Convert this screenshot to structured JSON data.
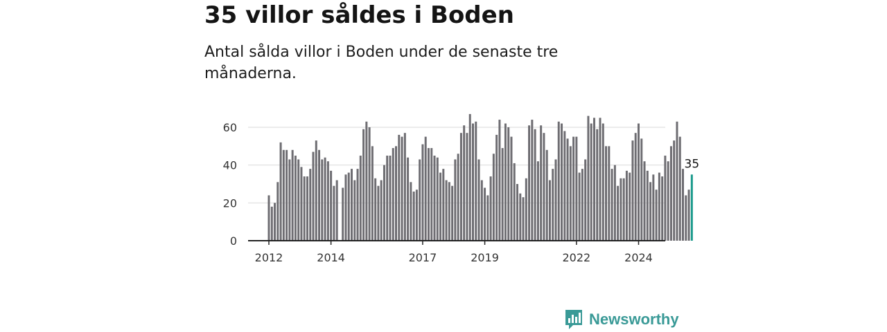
{
  "title": "35 villor såldes i Boden",
  "subtitle": "Antal sålda villor i Boden under de senaste tre månaderna.",
  "brand": {
    "name": "Newsworthy",
    "icon": "bar-chart-speech-bubble-icon",
    "color": "#3a9a97"
  },
  "colors": {
    "bars": "#6e6d72",
    "highlight": "#1a9a8c",
    "grid": "#d9d9d9",
    "axis": "#222222"
  },
  "chart_data": {
    "type": "bar",
    "title": "35 villor såldes i Boden",
    "xlabel": "",
    "ylabel": "",
    "ylim": [
      0,
      70
    ],
    "yticks": [
      0,
      20,
      40,
      60
    ],
    "xticks": [
      {
        "label": "2012",
        "index": 0
      },
      {
        "label": "2014",
        "index": 21
      },
      {
        "label": "2017",
        "index": 52
      },
      {
        "label": "2019",
        "index": 73
      },
      {
        "label": "2022",
        "index": 104
      },
      {
        "label": "2024",
        "index": 125
      }
    ],
    "values": [
      24,
      18,
      20,
      31,
      52,
      48,
      48,
      43,
      48,
      45,
      43,
      39,
      34,
      34,
      38,
      47,
      53,
      48,
      43,
      44,
      42,
      37,
      29,
      32,
      null,
      28,
      35,
      36,
      38,
      32,
      38,
      45,
      59,
      63,
      60,
      50,
      33,
      29,
      32,
      40,
      45,
      45,
      49,
      50,
      56,
      55,
      57,
      44,
      31,
      26,
      27,
      43,
      51,
      55,
      49,
      49,
      45,
      44,
      36,
      38,
      32,
      31,
      29,
      43,
      46,
      57,
      61,
      57,
      67,
      62,
      63,
      43,
      32,
      28,
      24,
      34,
      46,
      56,
      64,
      49,
      62,
      60,
      55,
      41,
      30,
      25,
      23,
      33,
      61,
      64,
      59,
      42,
      61,
      57,
      48,
      32,
      38,
      43,
      63,
      62,
      58,
      54,
      50,
      55,
      55,
      36,
      38,
      43,
      66,
      62,
      65,
      59,
      65,
      62,
      50,
      50,
      38,
      40,
      29,
      33,
      33,
      37,
      36,
      53,
      57,
      62,
      54,
      42,
      37,
      31,
      35,
      27,
      36,
      34,
      45,
      42,
      50,
      53,
      63,
      55,
      38,
      24,
      27,
      35
    ],
    "highlight_label": "35"
  }
}
